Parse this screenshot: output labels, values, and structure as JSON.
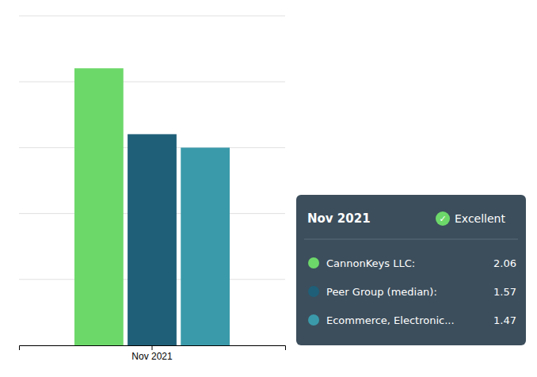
{
  "chart_data": {
    "type": "bar",
    "categories": [
      "Nov 2021"
    ],
    "series": [
      {
        "name": "CannonKeys LLC:",
        "color": "#6dd86a",
        "values": [
          2.06
        ]
      },
      {
        "name": "Peer Group (median):",
        "color": "#1f5f78",
        "values": [
          1.57
        ]
      },
      {
        "name": "Ecommerce, Electronic...",
        "color": "#3a9aaa",
        "values": [
          1.47
        ]
      }
    ],
    "ylim": [
      0,
      2.45
    ],
    "yticks": [
      0,
      0.49,
      0.98,
      1.47,
      1.96,
      2.45
    ],
    "grid": true,
    "tick_labels": "x",
    "legend": "lower right",
    "annotations": [
      "Nov 2021",
      "✓",
      "Excellent"
    ]
  }
}
